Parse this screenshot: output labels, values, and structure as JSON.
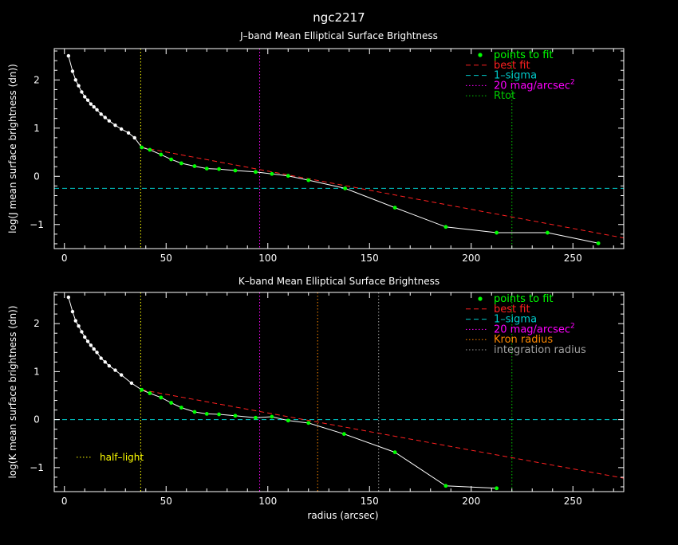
{
  "page": {
    "title": "ngc2217",
    "xlabel": "radius (arcsec)"
  },
  "colors": {
    "background": "#000000",
    "axes": "#ffffff",
    "points_to_fit": "#00ff00",
    "best_fit": "#ff2020",
    "one_sigma": "#00cccc",
    "mag20": "#ff00ff",
    "rtot": "#00cc00",
    "half_light": "#ffff00",
    "kron": "#ff8800",
    "integration": "#a0a0a0"
  },
  "chart_data": [
    {
      "type": "line",
      "title": "J–band Mean Elliptical Surface Brightness",
      "xlabel": "",
      "ylabel": "log(J mean surface brightness (dn))",
      "xlim": [
        -5,
        275
      ],
      "ylim": [
        -1.5,
        2.65
      ],
      "xticks": [
        0,
        50,
        100,
        150,
        200,
        250
      ],
      "yticks": [
        -1,
        0,
        1,
        2
      ],
      "legend_position": "top-right",
      "legend": [
        {
          "key": "points_to_fit",
          "label": "points to fit",
          "style": "dot"
        },
        {
          "key": "best_fit",
          "label": "best fit",
          "style": "dashed"
        },
        {
          "key": "one_sigma",
          "label": "1–sigma",
          "style": "dashed"
        },
        {
          "key": "mag20",
          "label": "20 mag/arcsec",
          "sup": "2",
          "style": "dotted"
        },
        {
          "key": "rtot",
          "label": "Rtot",
          "style": "dotted"
        }
      ],
      "profile_x": [
        2,
        4,
        5.5,
        7,
        8.5,
        10,
        11.5,
        13,
        14.5,
        16,
        18,
        20,
        22,
        25,
        28,
        31.5,
        34.5,
        38,
        42,
        47.5,
        52.5,
        57.5,
        64,
        70,
        76,
        84,
        94,
        102,
        110,
        120,
        138,
        162.5,
        187.5,
        212.5,
        237.5,
        262.5
      ],
      "profile_y": [
        2.5,
        2.18,
        2.0,
        1.88,
        1.75,
        1.65,
        1.58,
        1.5,
        1.44,
        1.38,
        1.29,
        1.22,
        1.15,
        1.06,
        0.98,
        0.9,
        0.8,
        0.6,
        0.55,
        0.45,
        0.35,
        0.27,
        0.21,
        0.16,
        0.15,
        0.12,
        0.09,
        0.05,
        0.01,
        -0.08,
        -0.25,
        -0.65,
        -1.05,
        -1.17,
        -1.17,
        -1.39
      ],
      "fit_points_x": [
        38,
        42,
        47.5,
        52.5,
        57.5,
        64,
        70,
        76,
        84,
        94,
        102,
        110,
        120,
        138,
        162.5,
        187.5,
        212.5,
        237.5,
        262.5
      ],
      "best_fit": {
        "x": [
          38,
          275
        ],
        "y": [
          0.6,
          -1.28
        ]
      },
      "one_sigma_y": -0.25,
      "vlines": [
        {
          "key": "half_light",
          "x": 37.5
        },
        {
          "key": "mag20",
          "x": 96
        },
        {
          "key": "rtot",
          "x": 220
        }
      ]
    },
    {
      "type": "line",
      "title": "K–band Mean Elliptical Surface Brightness",
      "xlabel": "radius (arcsec)",
      "ylabel": "log(K mean surface brightness (dn))",
      "xlim": [
        -5,
        275
      ],
      "ylim": [
        -1.5,
        2.65
      ],
      "xticks": [
        0,
        50,
        100,
        150,
        200,
        250
      ],
      "yticks": [
        -1,
        0,
        1,
        2
      ],
      "legend_position": "top-right",
      "legend": [
        {
          "key": "points_to_fit",
          "label": "points to fit",
          "style": "dot"
        },
        {
          "key": "best_fit",
          "label": "best fit",
          "style": "dashed"
        },
        {
          "key": "one_sigma",
          "label": "1–sigma",
          "style": "dashed"
        },
        {
          "key": "mag20",
          "label": "20 mag/arcsec",
          "sup": "2",
          "style": "dotted"
        },
        {
          "key": "kron",
          "label": "Kron radius",
          "style": "dotted"
        },
        {
          "key": "integration",
          "label": "integration radius",
          "style": "dotted"
        }
      ],
      "annotation": {
        "key": "half_light",
        "label": "half–light",
        "position": "lower-left"
      },
      "profile_x": [
        2,
        4,
        5.5,
        7,
        8.5,
        10,
        11.5,
        13,
        14.5,
        16,
        18,
        20,
        22,
        25,
        28,
        33,
        38,
        42,
        47.5,
        52.5,
        57.5,
        64,
        70,
        76,
        84,
        94,
        102,
        110,
        120,
        137.5,
        162.5,
        187.5,
        212.5
      ],
      "profile_y": [
        2.55,
        2.25,
        2.06,
        1.95,
        1.83,
        1.72,
        1.63,
        1.55,
        1.47,
        1.4,
        1.28,
        1.2,
        1.12,
        1.03,
        0.93,
        0.76,
        0.62,
        0.55,
        0.46,
        0.35,
        0.25,
        0.16,
        0.12,
        0.11,
        0.08,
        0.04,
        0.06,
        -0.02,
        -0.07,
        -0.3,
        -0.68,
        -1.38,
        -1.43
      ],
      "fit_points_x": [
        38,
        42,
        47.5,
        52.5,
        57.5,
        64,
        70,
        76,
        84,
        94,
        102,
        110,
        120,
        137.5,
        162.5,
        187.5,
        212.5
      ],
      "best_fit": {
        "x": [
          38,
          275
        ],
        "y": [
          0.62,
          -1.22
        ]
      },
      "one_sigma_y": 0.0,
      "vlines": [
        {
          "key": "half_light",
          "x": 37.5
        },
        {
          "key": "mag20",
          "x": 96
        },
        {
          "key": "kron",
          "x": 124.5
        },
        {
          "key": "integration",
          "x": 154.5
        },
        {
          "key": "rtot",
          "x": 220
        }
      ]
    }
  ]
}
